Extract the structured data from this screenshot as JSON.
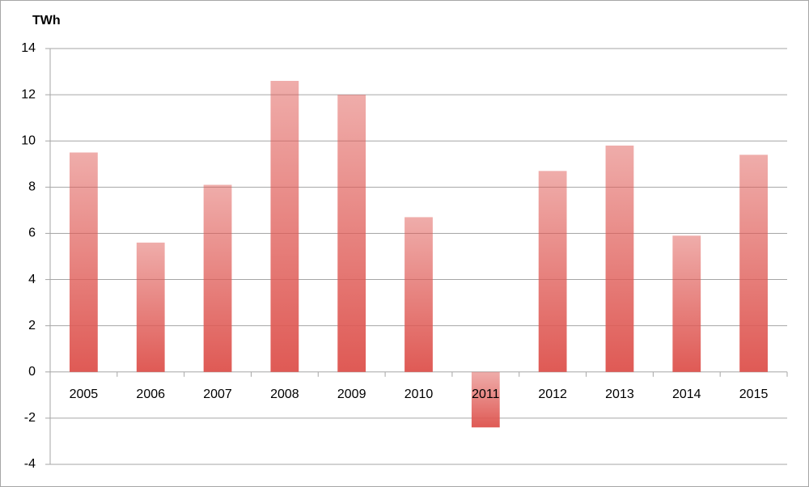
{
  "chart_data": {
    "type": "bar",
    "y_label": "TWh",
    "categories": [
      "2005",
      "2006",
      "2007",
      "2008",
      "2009",
      "2010",
      "2011",
      "2012",
      "2013",
      "2014",
      "2015"
    ],
    "values": [
      9.5,
      5.6,
      8.1,
      12.6,
      12.0,
      6.7,
      -2.4,
      8.7,
      9.8,
      5.9,
      9.4
    ],
    "color": "#df5a55",
    "ylim": [
      -4,
      14
    ],
    "yticks": [
      -4,
      -2,
      0,
      2,
      4,
      6,
      8,
      10,
      12,
      14
    ],
    "grid": true
  }
}
